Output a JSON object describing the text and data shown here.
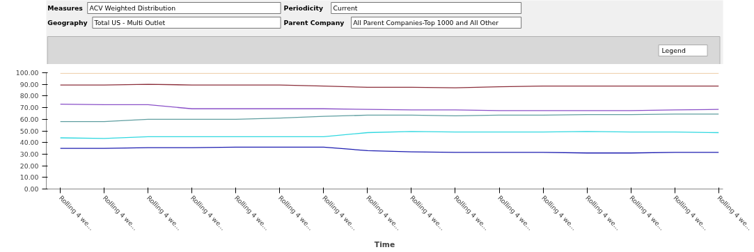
{
  "chart_data": {
    "type": "line",
    "xlabel": "Time",
    "annotations": [
      "Measures",
      "ACV Weighted Distribution",
      "Periodicity",
      "Current",
      "Geography",
      "Total US - Multi Outlet",
      "Parent Company",
      "All Parent Companies-Top 1000 and All Other",
      "Legend"
    ],
    "categories": [
      "Rolling 4 we...",
      "Rolling 4 we...",
      "Rolling 4 we...",
      "Rolling 4 we...",
      "Rolling 4 we...",
      "Rolling 4 we...",
      "Rolling 4 we...",
      "Rolling 4 we...",
      "Rolling 4 we...",
      "Rolling 4 we...",
      "Rolling 4 we...",
      "Rolling 4 we...",
      "Rolling 4 we...",
      "Rolling 4 we...",
      "Rolling 4 we...",
      "Rolling 4 we..."
    ],
    "series": [
      {
        "color": "#f0d2b0",
        "values": [
          99.5,
          99.5,
          99.5,
          99.5,
          99.5,
          99.5,
          99.5,
          99.5,
          99.5,
          99.5,
          99.5,
          99.5,
          99.5,
          99.5,
          99.5,
          99.5
        ]
      },
      {
        "color": "#8b2e3a",
        "values": [
          89.5,
          89.5,
          90,
          89.5,
          89.5,
          89.5,
          88.5,
          87.5,
          87.5,
          87,
          88,
          88.5,
          88.5,
          88.5,
          88.5,
          88.5
        ]
      },
      {
        "color": "#8a50c8",
        "values": [
          73,
          72.5,
          72.5,
          69,
          69,
          69,
          69,
          68.5,
          68,
          68,
          67.5,
          67.5,
          67.5,
          67.5,
          68,
          68.5
        ]
      },
      {
        "color": "#5f9ea0",
        "values": [
          58,
          58,
          60,
          60,
          60,
          61,
          62.5,
          63.5,
          63.5,
          63,
          63.5,
          63.5,
          64,
          64,
          64.5,
          64.5
        ]
      },
      {
        "color": "#30d8e0",
        "values": [
          44,
          43.5,
          45,
          45,
          45,
          45,
          45,
          48.5,
          49.5,
          49,
          49,
          49,
          49.5,
          49,
          49,
          48.5
        ]
      },
      {
        "color": "#1c1cb0",
        "values": [
          35,
          35,
          35.5,
          35.5,
          36,
          36,
          36,
          33,
          32,
          31.5,
          31.5,
          31.5,
          31,
          31,
          31.5,
          31.5
        ]
      }
    ],
    "ylim": [
      0,
      100
    ],
    "yticks": [
      {
        "value": 0,
        "label": "0.00"
      },
      {
        "value": 10,
        "label": "10.00"
      },
      {
        "value": 20,
        "label": "20.00"
      },
      {
        "value": 30,
        "label": "30.00"
      },
      {
        "value": 40,
        "label": "40.00"
      },
      {
        "value": 50,
        "label": "50.00"
      },
      {
        "value": 60,
        "label": "60.00"
      },
      {
        "value": 70,
        "label": "70.00"
      },
      {
        "value": 80,
        "label": "80.00"
      },
      {
        "value": 90,
        "label": "90.00"
      },
      {
        "value": 100,
        "label": "100.00"
      }
    ],
    "grid": false,
    "marker": "none",
    "line_style": "solid"
  }
}
